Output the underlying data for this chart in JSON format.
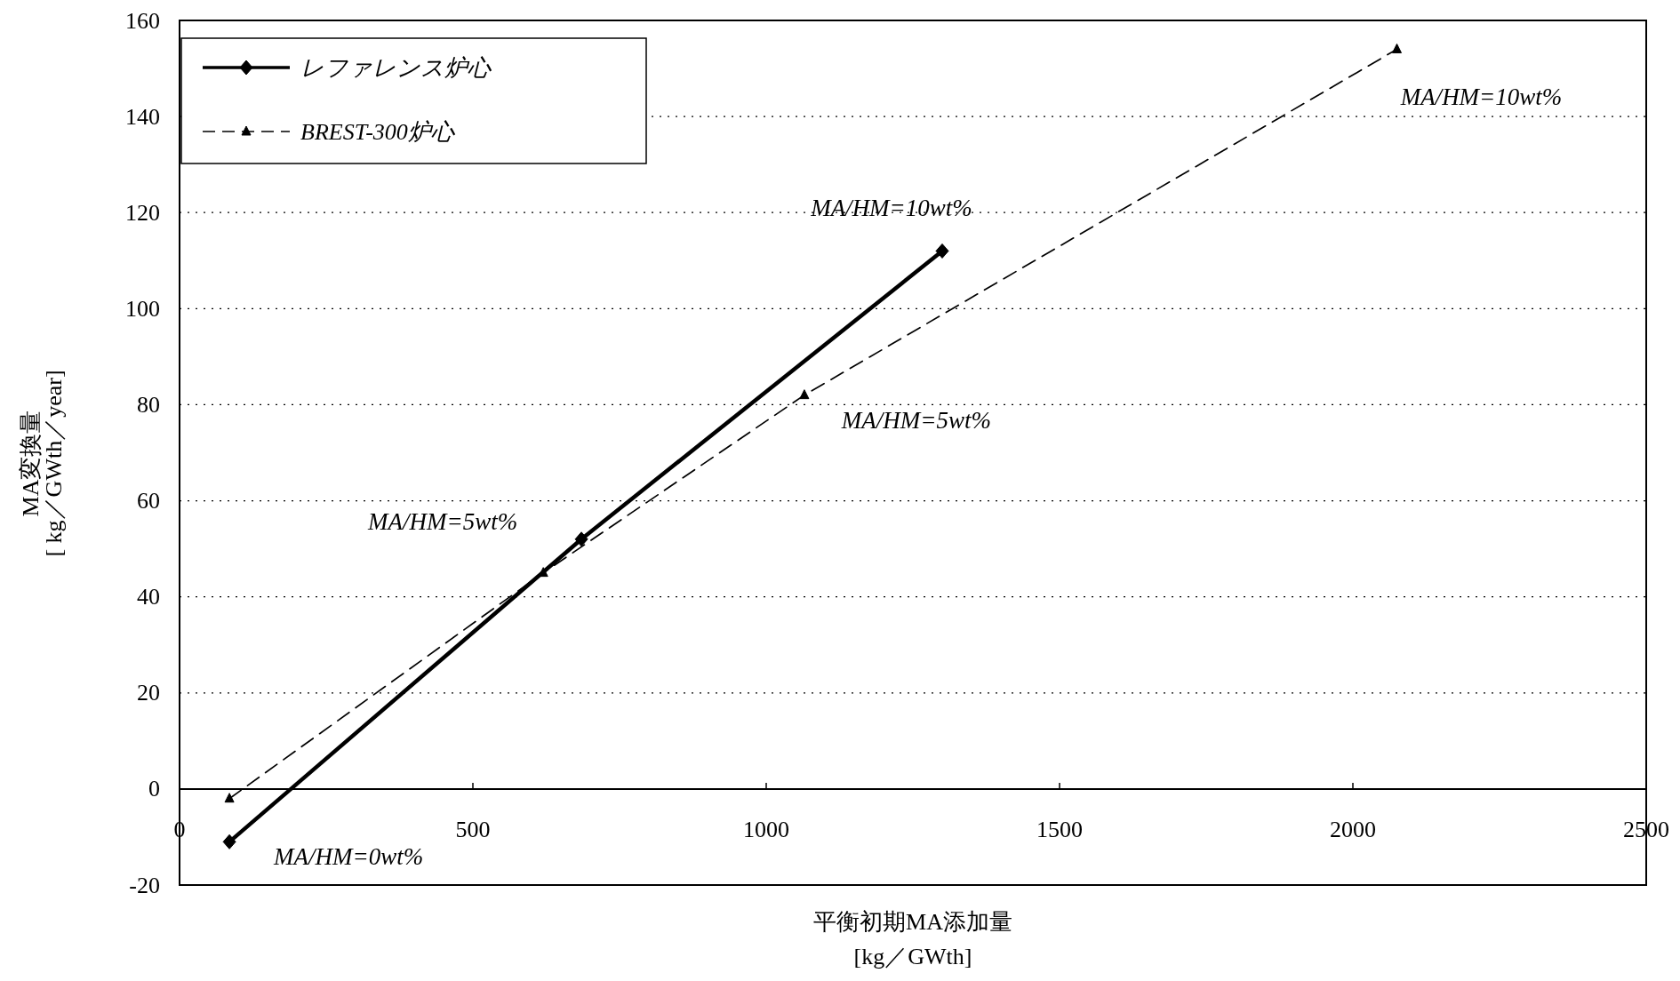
{
  "chart_data": {
    "type": "line",
    "xlabel": "平衡初期MA添加量\n[kg／GWth]",
    "ylabel": "MA変換量\n[ kg／GWth／year]",
    "xlim": [
      0,
      2500
    ],
    "xticks": [
      0,
      500,
      1000,
      1500,
      2000,
      2500
    ],
    "ylim": [
      -20,
      160
    ],
    "yticks": [
      -20,
      0,
      20,
      40,
      60,
      80,
      100,
      120,
      140,
      160
    ],
    "grid": "y",
    "legend": "top left",
    "series": [
      {
        "name": "レファレンス炉心",
        "color": "#000000",
        "x": [
          85,
          685,
          1300
        ],
        "values": [
          -11,
          52,
          112
        ],
        "marker": "diamond",
        "line_style": "solid"
      },
      {
        "name": "BREST-300炉心",
        "color": "#000000",
        "x": [
          85,
          620,
          1065,
          2075
        ],
        "values": [
          -2,
          45,
          82,
          154
        ],
        "marker": "triangle",
        "line_style": "dashed"
      }
    ],
    "annotations": [
      {
        "text": "MA/HM=0wt%",
        "x": 85,
        "y": -11
      },
      {
        "text": "MA/HM=5wt%",
        "x": 685,
        "y": 52
      },
      {
        "text": "MA/HM=10wt%",
        "x": 1300,
        "y": 112
      },
      {
        "text": "MA/HM=5wt%",
        "x": 1065,
        "y": 82
      },
      {
        "text": "MA/HM=10wt%",
        "x": 2075,
        "y": 154
      }
    ]
  }
}
